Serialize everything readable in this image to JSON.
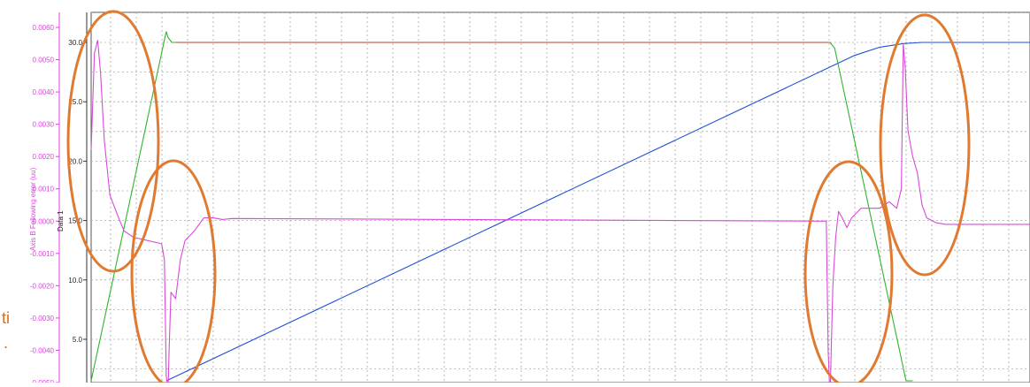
{
  "chart_data": {
    "type": "line",
    "left_axis": {
      "label": "Axis B Following error (uu)",
      "ticks": [
        0.006,
        0.005,
        0.004,
        0.003,
        0.002,
        0.001,
        0.0,
        -0.001,
        -0.002,
        -0.003,
        -0.004,
        -0.005
      ],
      "tick_labels": [
        "0.0060",
        "0.0050",
        "0.0040",
        "0.0030",
        "0.0020",
        "0.0010",
        "0.0000",
        "-0.0010",
        "-0.0020",
        "-0.0030",
        "-0.0040",
        "-0.0050"
      ],
      "color": "#e040e0"
    },
    "right_axis": {
      "label": "Data 1",
      "ticks": [
        30.0,
        25.0,
        20.0,
        15.0,
        10.0,
        5.0
      ],
      "tick_labels": [
        "30.0",
        "25.0",
        "20.0",
        "15.0",
        "10.0",
        "5.0"
      ],
      "ylim": [
        1.5,
        31.4
      ]
    },
    "grid": true,
    "x_domain": [
      0,
      100
    ],
    "series": [
      {
        "color": "#1f4fd6",
        "axis": "right",
        "x": [
          8.0,
          81.3,
          84.0,
          86.5,
          88.5,
          90.5,
          100.0
        ],
        "values": [
          1.5,
          28.9,
          29.6,
          29.9,
          30.0,
          30.0,
          30.0
        ]
      },
      {
        "color": "#2fb52f",
        "axis": "right",
        "x": [
          0.0,
          7.8,
          8.0,
          8.2,
          8.6,
          9.2,
          78.7,
          79.2,
          86.8,
          87.5
        ],
        "values": [
          1.5,
          30.2,
          30.9,
          30.4,
          30.0,
          30.0,
          30.0,
          29.5,
          1.5,
          1.5
        ]
      },
      {
        "color": "#c03a2a",
        "axis": "right",
        "x": [
          9.0,
          78.6
        ],
        "values": [
          30.0,
          30.0
        ]
      },
      {
        "color": "#d84ad8",
        "axis": "left",
        "x": [
          0.0,
          0.35,
          0.7,
          1.0,
          1.4,
          2.0,
          3.0,
          3.5,
          4.5,
          6.0,
          7.5,
          7.8,
          8.0,
          8.2,
          8.3,
          8.5,
          9.0,
          9.5,
          10.0,
          11.0,
          12.0,
          13.0,
          14.0,
          15.0,
          78.3,
          78.5,
          78.7,
          79.0,
          79.3,
          79.6,
          80.0,
          80.5,
          81.0,
          82.0,
          83.0,
          84.0,
          85.0,
          85.8,
          86.3,
          86.5,
          86.7,
          87.0,
          87.5,
          88.0,
          88.5,
          89.0,
          90.0,
          91.0,
          93.0,
          100.0
        ],
        "values": [
          0.0022,
          0.0052,
          0.0056,
          0.0046,
          0.0025,
          0.0008,
          5e-05,
          -0.0003,
          -0.0005,
          -0.0006,
          -0.0007,
          -0.0012,
          -0.0048,
          -0.0052,
          -0.004,
          -0.0022,
          -0.0024,
          -0.0012,
          -0.0006,
          -0.0003,
          0.0001,
          0.0001,
          5e-05,
          8e-05,
          0.0,
          -0.004,
          -0.0055,
          -0.002,
          -0.0005,
          0.0003,
          0.0001,
          -0.0002,
          0.0001,
          0.0004,
          0.0004,
          0.0004,
          0.0006,
          0.0004,
          0.001,
          0.0055,
          0.0048,
          0.0028,
          0.002,
          0.0015,
          0.0005,
          0.0001,
          -5e-05,
          -0.0001,
          -0.0001,
          -0.0001
        ]
      }
    ]
  },
  "side_text": {
    "line1": "ti",
    "line2": "."
  }
}
